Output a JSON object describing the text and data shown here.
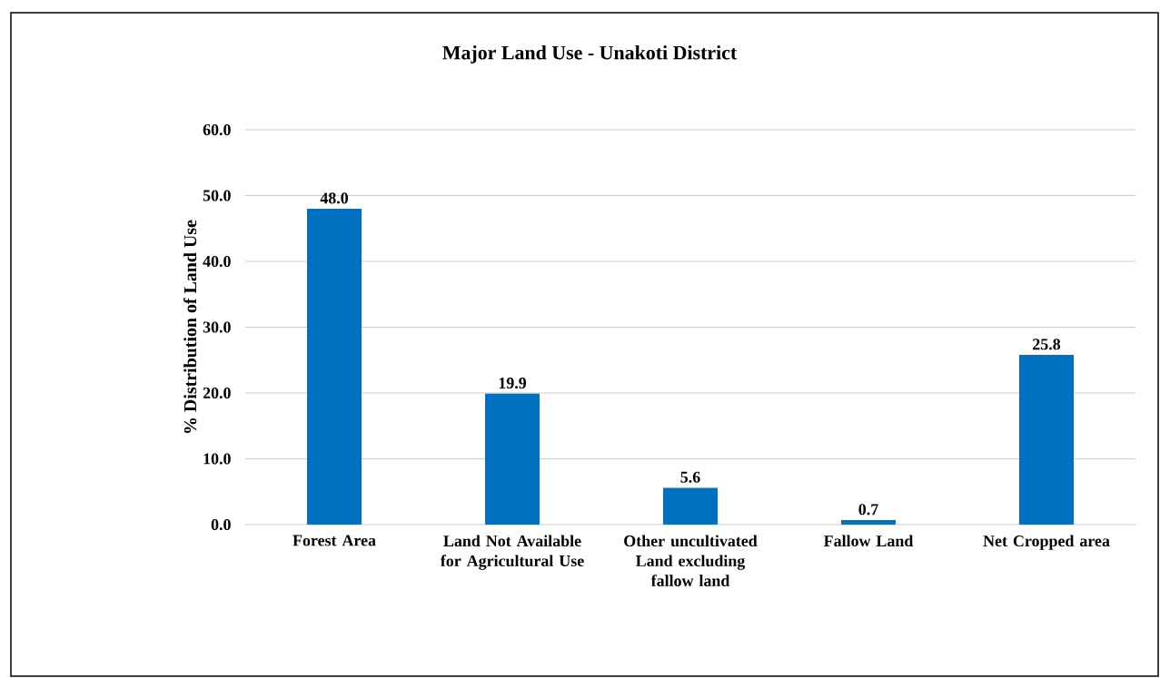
{
  "chart_data": {
    "type": "bar",
    "title": "Major Land Use - Unakoti District",
    "ylabel": "% Distribution of Land Use",
    "categories": [
      "Forest Area",
      "Land Not Available for Agricultural Use",
      "Other uncultivated Land excluding fallow land",
      "Fallow Land",
      "Net Cropped area"
    ],
    "values": [
      48.0,
      19.9,
      5.6,
      0.7,
      25.8
    ],
    "value_labels": [
      "48.0",
      "19.9",
      "5.6",
      "0.7",
      "25.8"
    ],
    "color": "#0070c0",
    "ylim": [
      0,
      60
    ],
    "yticks": [
      {
        "value": 0,
        "label": "0.0"
      },
      {
        "value": 10,
        "label": "10.0"
      },
      {
        "value": 20,
        "label": "20.0"
      },
      {
        "value": 30,
        "label": "30.0"
      },
      {
        "value": 40,
        "label": "40.0"
      },
      {
        "value": 50,
        "label": "50.0"
      },
      {
        "value": 60,
        "label": "60.0"
      }
    ],
    "grid": true
  }
}
